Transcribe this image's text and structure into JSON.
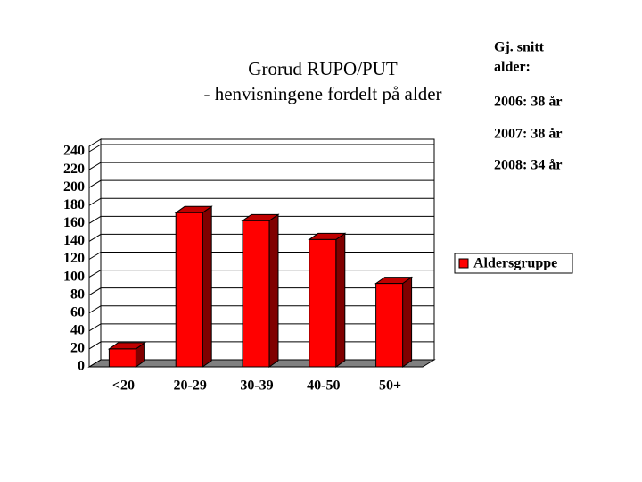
{
  "chart_data": {
    "type": "bar3d",
    "title": [
      "Grorud RUPO/PUT",
      "- henvisningene fordelt på alder"
    ],
    "annotations": [
      "Gj. snitt",
      "alder:",
      "2006: 38 år",
      "2007: 38 år",
      "2008: 34 år"
    ],
    "categories": [
      "<20",
      "20-29",
      "30-39",
      "40-50",
      "50+"
    ],
    "series": [
      {
        "name": "Aldersgruppe",
        "color": "#ff0000",
        "values": [
          20,
          172,
          163,
          142,
          93
        ]
      }
    ],
    "ylim": [
      0,
      240
    ],
    "yticks": [
      0,
      20,
      40,
      60,
      80,
      100,
      120,
      140,
      160,
      180,
      200,
      220,
      240
    ],
    "grid": true,
    "legend": "right"
  }
}
